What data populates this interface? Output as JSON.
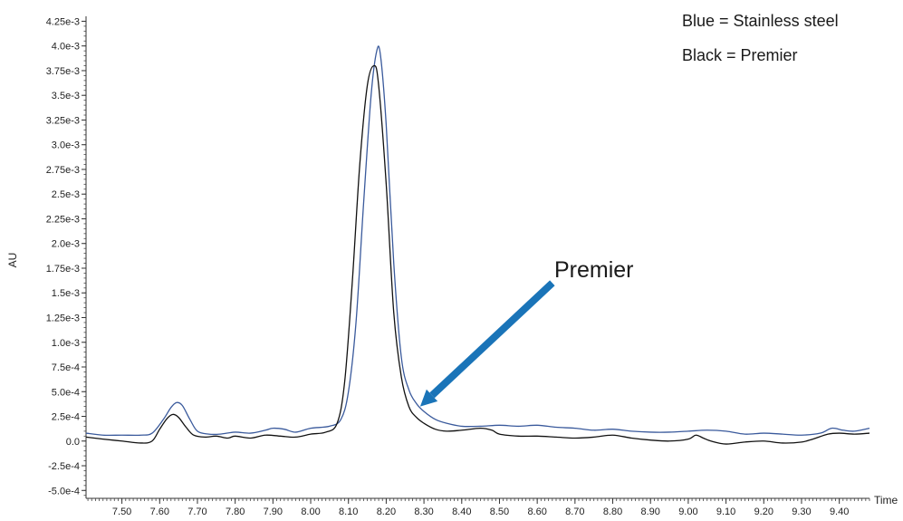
{
  "chart_data": {
    "type": "line",
    "title": "",
    "xlabel": "Time",
    "ylabel": "AU",
    "xlim": [
      7.405,
      9.48
    ],
    "ylim": [
      -0.00058,
      0.0043
    ],
    "grid": false,
    "x_ticks": [
      7.5,
      7.6,
      7.7,
      7.8,
      7.9,
      8.0,
      8.1,
      8.2,
      8.3,
      8.4,
      8.5,
      8.6,
      8.7,
      8.8,
      8.9,
      9.0,
      9.1,
      9.2,
      9.3,
      9.4
    ],
    "x_tick_labels": [
      "7.50",
      "7.60",
      "7.70",
      "7.80",
      "7.90",
      "8.00",
      "8.10",
      "8.20",
      "8.30",
      "8.40",
      "8.50",
      "8.60",
      "8.70",
      "8.80",
      "8.90",
      "9.00",
      "9.10",
      "9.20",
      "9.30",
      "9.40"
    ],
    "y_ticks": [
      0.00425,
      0.004,
      0.00375,
      0.0035,
      0.00325,
      0.003,
      0.00275,
      0.0025,
      0.00225,
      0.002,
      0.00175,
      0.0015,
      0.00125,
      0.001,
      0.00075,
      0.0005,
      0.00025,
      0.0,
      -0.00025,
      -0.0005
    ],
    "y_tick_labels": [
      "4.25e-3",
      "4.0e-3",
      "3.75e-3",
      "3.5e-3",
      "3.25e-3",
      "3.0e-3",
      "2.75e-3",
      "2.5e-3",
      "2.25e-3",
      "2.0e-3",
      "1.75e-3",
      "1.5e-3",
      "1.25e-3",
      "1.0e-3",
      "7.5e-4",
      "5.0e-4",
      "2.5e-4",
      "0.0",
      "-2.5e-4",
      "-5.0e-4"
    ],
    "legend_entries": [
      "Blue = Stainless steel",
      "Black = Premier"
    ],
    "legend_placement": "top-right",
    "series": [
      {
        "color": "#3a5a9c",
        "points": [
          [
            7.405,
            8e-05
          ],
          [
            7.45,
            6e-05
          ],
          [
            7.5,
            6e-05
          ],
          [
            7.55,
            6e-05
          ],
          [
            7.58,
            8e-05
          ],
          [
            7.61,
            0.00022
          ],
          [
            7.63,
            0.00034
          ],
          [
            7.645,
            0.00039
          ],
          [
            7.66,
            0.00036
          ],
          [
            7.68,
            0.00022
          ],
          [
            7.7,
            0.0001
          ],
          [
            7.73,
            7e-05
          ],
          [
            7.76,
            7e-05
          ],
          [
            7.8,
            9e-05
          ],
          [
            7.84,
            8e-05
          ],
          [
            7.88,
            0.00011
          ],
          [
            7.9,
            0.00013
          ],
          [
            7.93,
            0.00012
          ],
          [
            7.96,
            9e-05
          ],
          [
            8.0,
            0.00013
          ],
          [
            8.05,
            0.00015
          ],
          [
            8.08,
            0.00022
          ],
          [
            8.1,
            0.0005
          ],
          [
            8.12,
            0.0012
          ],
          [
            8.14,
            0.0024
          ],
          [
            8.16,
            0.0035
          ],
          [
            8.175,
            0.00395
          ],
          [
            8.185,
            0.0039
          ],
          [
            8.2,
            0.0032
          ],
          [
            8.22,
            0.0018
          ],
          [
            8.24,
            0.00085
          ],
          [
            8.26,
            0.00052
          ],
          [
            8.28,
            0.00038
          ],
          [
            8.3,
            0.0003
          ],
          [
            8.33,
            0.00022
          ],
          [
            8.36,
            0.00018
          ],
          [
            8.4,
            0.00015
          ],
          [
            8.45,
            0.00015
          ],
          [
            8.5,
            0.00016
          ],
          [
            8.55,
            0.00015
          ],
          [
            8.6,
            0.00016
          ],
          [
            8.65,
            0.00014
          ],
          [
            8.7,
            0.00013
          ],
          [
            8.75,
            0.00011
          ],
          [
            8.8,
            0.00012
          ],
          [
            8.85,
            0.0001
          ],
          [
            8.9,
            9e-05
          ],
          [
            8.95,
            9e-05
          ],
          [
            9.0,
            0.0001
          ],
          [
            9.05,
            0.00011
          ],
          [
            9.1,
            0.0001
          ],
          [
            9.15,
            7e-05
          ],
          [
            9.2,
            8e-05
          ],
          [
            9.25,
            7e-05
          ],
          [
            9.3,
            6e-05
          ],
          [
            9.35,
            8e-05
          ],
          [
            9.38,
            0.00013
          ],
          [
            9.41,
            0.00011
          ],
          [
            9.44,
            0.0001
          ],
          [
            9.48,
            0.00013
          ]
        ]
      },
      {
        "color": "#111111",
        "points": [
          [
            7.405,
            4e-05
          ],
          [
            7.45,
            2e-05
          ],
          [
            7.5,
            0.0
          ],
          [
            7.55,
            -2e-05
          ],
          [
            7.58,
            0.0
          ],
          [
            7.6,
            0.00012
          ],
          [
            7.62,
            0.00023
          ],
          [
            7.635,
            0.00027
          ],
          [
            7.65,
            0.00024
          ],
          [
            7.67,
            0.00014
          ],
          [
            7.69,
            6e-05
          ],
          [
            7.72,
            4e-05
          ],
          [
            7.75,
            5e-05
          ],
          [
            7.78,
            3e-05
          ],
          [
            7.8,
            5e-05
          ],
          [
            7.84,
            3e-05
          ],
          [
            7.88,
            6e-05
          ],
          [
            7.92,
            5e-05
          ],
          [
            7.96,
            4e-05
          ],
          [
            8.0,
            7e-05
          ],
          [
            8.04,
            9e-05
          ],
          [
            8.07,
            0.00018
          ],
          [
            8.09,
            0.0006
          ],
          [
            8.11,
            0.0016
          ],
          [
            8.13,
            0.0028
          ],
          [
            8.15,
            0.0036
          ],
          [
            8.168,
            0.0038
          ],
          [
            8.18,
            0.0036
          ],
          [
            8.2,
            0.0026
          ],
          [
            8.22,
            0.0013
          ],
          [
            8.24,
            0.00065
          ],
          [
            8.26,
            0.00035
          ],
          [
            8.28,
            0.00024
          ],
          [
            8.3,
            0.00018
          ],
          [
            8.33,
            0.00012
          ],
          [
            8.36,
            0.0001
          ],
          [
            8.4,
            0.00011
          ],
          [
            8.45,
            0.00013
          ],
          [
            8.48,
            0.00011
          ],
          [
            8.5,
            7e-05
          ],
          [
            8.55,
            5e-05
          ],
          [
            8.6,
            5e-05
          ],
          [
            8.65,
            4e-05
          ],
          [
            8.7,
            3e-05
          ],
          [
            8.75,
            4e-05
          ],
          [
            8.8,
            6e-05
          ],
          [
            8.85,
            3e-05
          ],
          [
            8.9,
            1e-05
          ],
          [
            8.95,
            0.0
          ],
          [
            9.0,
            2e-05
          ],
          [
            9.02,
            6e-05
          ],
          [
            9.04,
            3e-05
          ],
          [
            9.06,
            0.0
          ],
          [
            9.1,
            -3e-05
          ],
          [
            9.15,
            -1e-05
          ],
          [
            9.2,
            0.0
          ],
          [
            9.25,
            -2e-05
          ],
          [
            9.3,
            -1e-05
          ],
          [
            9.33,
            2e-05
          ],
          [
            9.37,
            7e-05
          ],
          [
            9.4,
            8e-05
          ],
          [
            9.44,
            7e-05
          ],
          [
            9.48,
            8e-05
          ]
        ]
      }
    ],
    "annotation": {
      "text": "Premier",
      "arrow_color": "#1a74b8",
      "arrow_from": [
        8.64,
        0.0016
      ],
      "arrow_to": [
        8.29,
        0.00035
      ]
    }
  }
}
